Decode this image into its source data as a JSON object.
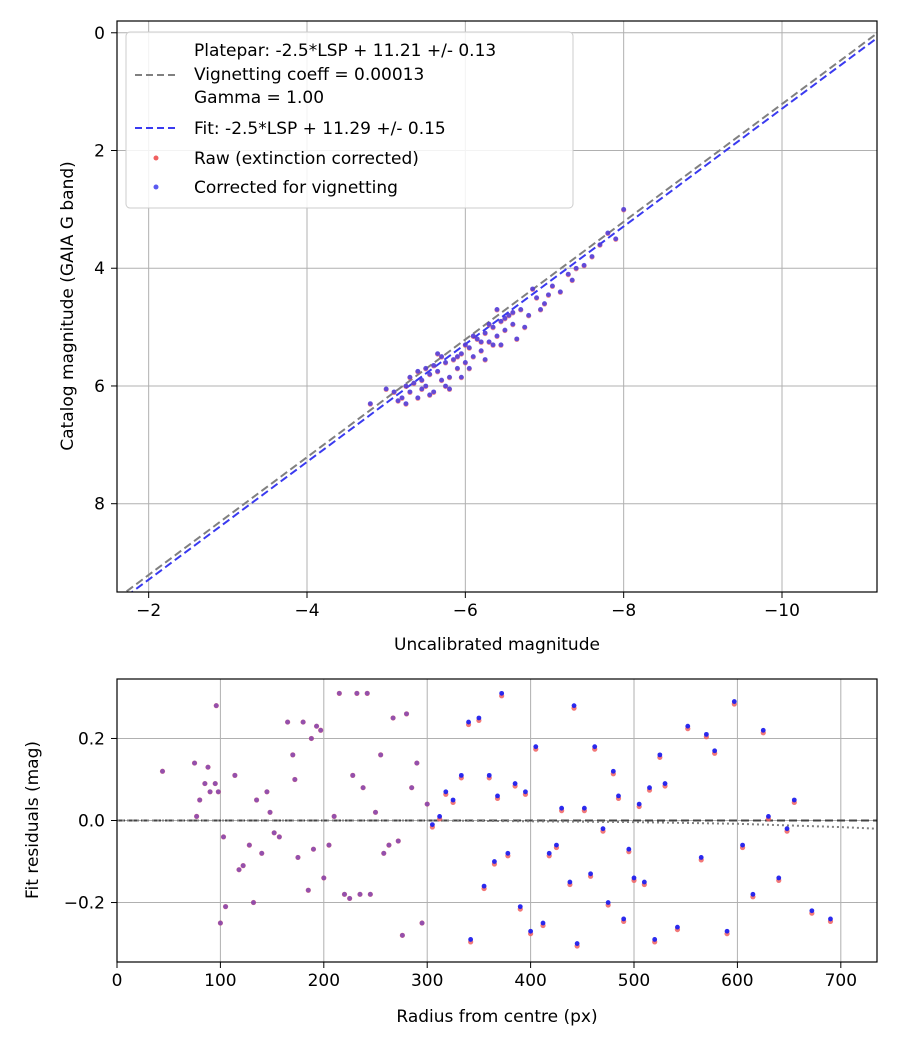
{
  "chart_data": [
    {
      "type": "scatter",
      "ylabel": "Catalog magnitude (GAIA G band)",
      "xlabel": "Uncalibrated magnitude",
      "xlim": [
        -1.6,
        -11.2
      ],
      "ylim": [
        9.5,
        -0.2
      ],
      "x_ticks": [
        -2,
        -4,
        -6,
        -8,
        -10
      ],
      "x_tick_labels": [
        "−2",
        "−4",
        "−6",
        "−8",
        "−10"
      ],
      "y_ticks": [
        0,
        2,
        4,
        6,
        8
      ],
      "y_tick_labels": [
        "0",
        "2",
        "4",
        "6",
        "8"
      ],
      "grid": true,
      "legend_position": "top-left",
      "legend": [
        {
          "kind": "line",
          "color": "#808080",
          "label_lines": [
            "Platepar: -2.5*LSP + 11.21 +/- 0.13",
            "Vignetting coeff = 0.00013",
            "Gamma = 1.00"
          ]
        },
        {
          "kind": "line",
          "color": "#3a3af0",
          "label_lines": [
            "Fit: -2.5*LSP + 11.29 +/- 0.15"
          ]
        },
        {
          "kind": "dot",
          "color": "#f06060",
          "label_lines": [
            "Raw (extinction corrected)"
          ]
        },
        {
          "kind": "dot",
          "color": "#5a5af0",
          "label_lines": [
            "Corrected for vignetting"
          ]
        }
      ],
      "lines": [
        {
          "name": "Platepar",
          "slope": -2.5,
          "intercept": 11.21,
          "color": "#808080"
        },
        {
          "name": "Fit",
          "slope": -2.5,
          "intercept": 11.29,
          "color": "#3a3af0"
        }
      ],
      "series": [
        {
          "name": "Raw (extinction corrected)",
          "color": "#f06060"
        },
        {
          "name": "Corrected for vignetting",
          "color": "#3333ee"
        }
      ],
      "points": [
        [
          -5.0,
          6.05
        ],
        [
          -5.1,
          6.1
        ],
        [
          -5.2,
          6.2
        ],
        [
          -5.25,
          6.0
        ],
        [
          -5.3,
          6.1
        ],
        [
          -5.35,
          5.95
        ],
        [
          -5.4,
          6.2
        ],
        [
          -5.45,
          5.9
        ],
        [
          -5.5,
          6.0
        ],
        [
          -5.55,
          5.8
        ],
        [
          -5.6,
          6.1
        ],
        [
          -5.65,
          5.75
        ],
        [
          -5.7,
          5.9
        ],
        [
          -5.75,
          5.6
        ],
        [
          -5.8,
          5.85
        ],
        [
          -5.85,
          5.55
        ],
        [
          -5.9,
          5.7
        ],
        [
          -5.95,
          5.45
        ],
        [
          -6.0,
          5.6
        ],
        [
          -6.05,
          5.35
        ],
        [
          -6.1,
          5.5
        ],
        [
          -6.15,
          5.2
        ],
        [
          -6.2,
          5.4
        ],
        [
          -6.25,
          5.1
        ],
        [
          -6.3,
          5.25
        ],
        [
          -6.35,
          5.0
        ],
        [
          -6.4,
          5.15
        ],
        [
          -6.45,
          4.9
        ],
        [
          -6.5,
          5.05
        ],
        [
          -6.55,
          4.8
        ],
        [
          -6.6,
          4.95
        ],
        [
          -6.7,
          4.7
        ],
        [
          -6.8,
          4.8
        ],
        [
          -6.9,
          4.5
        ],
        [
          -7.0,
          4.6
        ],
        [
          -7.1,
          4.3
        ],
        [
          -7.2,
          4.4
        ],
        [
          -7.3,
          4.1
        ],
        [
          -7.4,
          4.0
        ],
        [
          -7.6,
          3.8
        ],
        [
          -7.8,
          3.4
        ],
        [
          -7.9,
          3.5
        ],
        [
          -8.0,
          3.0
        ],
        [
          -5.3,
          5.85
        ],
        [
          -5.45,
          6.05
        ],
        [
          -5.6,
          5.65
        ],
        [
          -5.75,
          6.0
        ],
        [
          -5.9,
          5.5
        ],
        [
          -6.05,
          5.7
        ],
        [
          -6.2,
          5.25
        ],
        [
          -6.35,
          5.3
        ],
        [
          -6.5,
          4.85
        ],
        [
          -5.15,
          6.25
        ],
        [
          -5.5,
          5.7
        ],
        [
          -5.8,
          6.05
        ],
        [
          -6.0,
          5.3
        ],
        [
          -6.3,
          4.95
        ],
        [
          -6.6,
          4.75
        ],
        [
          -6.75,
          5.0
        ],
        [
          -7.05,
          4.45
        ],
        [
          -7.35,
          4.2
        ],
        [
          -7.7,
          3.6
        ],
        [
          -5.4,
          5.75
        ],
        [
          -5.7,
          5.5
        ],
        [
          -6.1,
          5.15
        ],
        [
          -6.45,
          5.3
        ],
        [
          -6.85,
          4.35
        ],
        [
          -5.25,
          6.3
        ],
        [
          -5.55,
          6.15
        ],
        [
          -5.95,
          5.85
        ],
        [
          -6.25,
          5.55
        ],
        [
          -6.65,
          5.2
        ],
        [
          -4.8,
          6.3
        ],
        [
          -7.5,
          3.95
        ],
        [
          -6.95,
          4.7
        ],
        [
          -5.65,
          5.45
        ],
        [
          -6.4,
          4.7
        ]
      ],
      "panel": "top"
    },
    {
      "type": "scatter",
      "xlabel": "Radius from centre (px)",
      "ylabel": "Fit residuals (mag)",
      "xlim": [
        0,
        735
      ],
      "ylim": [
        -0.345,
        0.345
      ],
      "x_ticks": [
        0,
        100,
        200,
        300,
        400,
        500,
        600,
        700
      ],
      "x_tick_labels": [
        "0",
        "100",
        "200",
        "300",
        "400",
        "500",
        "600",
        "700"
      ],
      "y_ticks": [
        0.2,
        0.0,
        -0.2
      ],
      "y_tick_labels": [
        "0.2",
        "0.0",
        "−0.2"
      ],
      "grid": true,
      "reference_lines": [
        {
          "name": "zero",
          "style": "dashed",
          "color": "#444444",
          "points": [
            [
              0,
              0
            ],
            [
              735,
              0
            ]
          ]
        },
        {
          "name": "vignetting",
          "style": "dotted",
          "color": "#808080",
          "points": [
            [
              0,
              0
            ],
            [
              300,
              0
            ],
            [
              400,
              -0.002
            ],
            [
              500,
              -0.004
            ],
            [
              600,
              -0.008
            ],
            [
              700,
              -0.016
            ],
            [
              735,
              -0.02
            ]
          ]
        }
      ],
      "series": [
        {
          "name": "Raw (extinction corrected)",
          "color": "#f06060"
        },
        {
          "name": "Corrected for vignetting",
          "color": "#2020ee"
        }
      ],
      "points": [
        [
          44,
          0.12
        ],
        [
          75,
          0.14
        ],
        [
          77,
          0.01
        ],
        [
          80,
          0.05
        ],
        [
          85,
          0.09
        ],
        [
          88,
          0.13
        ],
        [
          90,
          0.07
        ],
        [
          95,
          0.09
        ],
        [
          96,
          0.28
        ],
        [
          98,
          0.07
        ],
        [
          100,
          -0.25
        ],
        [
          103,
          -0.04
        ],
        [
          105,
          -0.21
        ],
        [
          114,
          0.11
        ],
        [
          118,
          -0.12
        ],
        [
          122,
          -0.11
        ],
        [
          128,
          -0.06
        ],
        [
          132,
          -0.2
        ],
        [
          135,
          0.05
        ],
        [
          140,
          -0.08
        ],
        [
          145,
          0.07
        ],
        [
          148,
          0.02
        ],
        [
          152,
          -0.03
        ],
        [
          157,
          -0.04
        ],
        [
          165,
          0.24
        ],
        [
          170,
          0.16
        ],
        [
          172,
          0.1
        ],
        [
          175,
          -0.09
        ],
        [
          180,
          0.24
        ],
        [
          185,
          -0.17
        ],
        [
          188,
          0.2
        ],
        [
          190,
          -0.07
        ],
        [
          193,
          0.23
        ],
        [
          197,
          0.22
        ],
        [
          200,
          -0.14
        ],
        [
          205,
          -0.06
        ],
        [
          210,
          0.01
        ],
        [
          215,
          0.31
        ],
        [
          220,
          -0.18
        ],
        [
          225,
          -0.19
        ],
        [
          228,
          0.11
        ],
        [
          232,
          0.31
        ],
        [
          235,
          -0.18
        ],
        [
          238,
          0.08
        ],
        [
          242,
          0.31
        ],
        [
          245,
          -0.18
        ],
        [
          250,
          0.02
        ],
        [
          255,
          0.16
        ],
        [
          258,
          -0.08
        ],
        [
          263,
          -0.06
        ],
        [
          267,
          0.25
        ],
        [
          272,
          -0.05
        ],
        [
          276,
          -0.28
        ],
        [
          280,
          0.26
        ],
        [
          285,
          0.08
        ],
        [
          290,
          0.14
        ],
        [
          295,
          -0.25
        ],
        [
          300,
          0.04
        ],
        [
          305,
          -0.01
        ],
        [
          312,
          0.01
        ],
        [
          318,
          0.07
        ],
        [
          325,
          0.05
        ],
        [
          333,
          0.11
        ],
        [
          340,
          0.24
        ],
        [
          342,
          -0.29
        ],
        [
          350,
          0.25
        ],
        [
          355,
          -0.16
        ],
        [
          360,
          0.11
        ],
        [
          365,
          -0.1
        ],
        [
          368,
          0.06
        ],
        [
          372,
          0.31
        ],
        [
          378,
          -0.08
        ],
        [
          385,
          0.09
        ],
        [
          390,
          -0.21
        ],
        [
          395,
          0.07
        ],
        [
          400,
          -0.27
        ],
        [
          405,
          0.18
        ],
        [
          412,
          -0.25
        ],
        [
          418,
          -0.08
        ],
        [
          425,
          -0.06
        ],
        [
          430,
          0.03
        ],
        [
          438,
          -0.15
        ],
        [
          442,
          0.28
        ],
        [
          445,
          -0.3
        ],
        [
          452,
          0.03
        ],
        [
          458,
          -0.13
        ],
        [
          462,
          0.18
        ],
        [
          470,
          -0.02
        ],
        [
          475,
          -0.2
        ],
        [
          480,
          0.12
        ],
        [
          485,
          0.06
        ],
        [
          490,
          -0.24
        ],
        [
          495,
          -0.07
        ],
        [
          500,
          -0.14
        ],
        [
          505,
          0.04
        ],
        [
          510,
          -0.15
        ],
        [
          515,
          0.08
        ],
        [
          520,
          -0.29
        ],
        [
          525,
          0.16
        ],
        [
          530,
          0.09
        ],
        [
          542,
          -0.26
        ],
        [
          552,
          0.23
        ],
        [
          565,
          -0.09
        ],
        [
          570,
          0.21
        ],
        [
          578,
          0.17
        ],
        [
          590,
          -0.27
        ],
        [
          597,
          0.29
        ],
        [
          605,
          -0.06
        ],
        [
          615,
          -0.18
        ],
        [
          625,
          0.22
        ],
        [
          630,
          0.01
        ],
        [
          640,
          -0.14
        ],
        [
          648,
          -0.02
        ],
        [
          655,
          0.05
        ],
        [
          672,
          -0.22
        ],
        [
          690,
          -0.24
        ]
      ],
      "panel": "bottom"
    }
  ]
}
